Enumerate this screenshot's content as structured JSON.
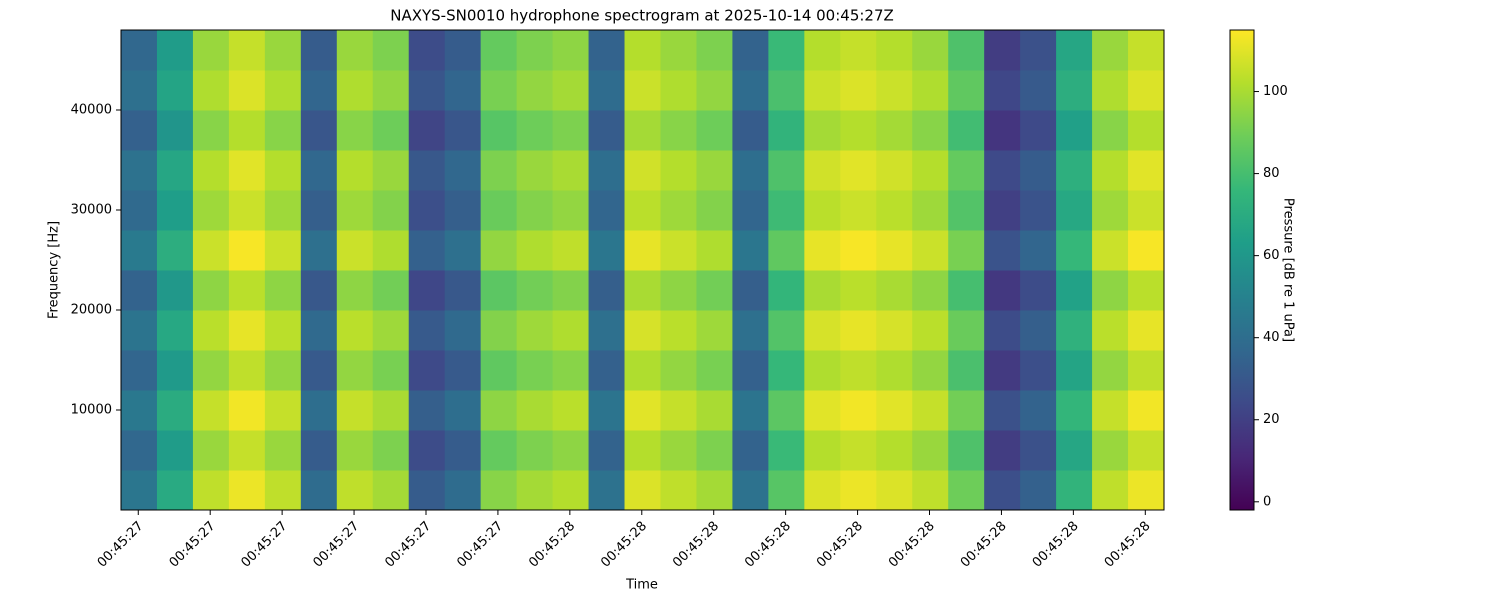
{
  "chart_data": {
    "type": "heatmap",
    "title": "NAXYS-SN0010 hydrophone spectrogram at 2025-10-14 00:45:27Z",
    "x_label": "Time",
    "y_label": "Frequency [Hz]",
    "colorbar_label": "Pressure [dB re 1 uPa]",
    "colormap": "viridis",
    "xlim": [
      2727.376,
      2728.826
    ],
    "ylim": [
      0,
      48000
    ],
    "zlim": [
      -2,
      115
    ],
    "xticks": [
      {
        "value": 2727.4,
        "label": "00:45:27"
      },
      {
        "value": 2727.5,
        "label": "00:45:27"
      },
      {
        "value": 2727.6,
        "label": "00:45:27"
      },
      {
        "value": 2727.7,
        "label": "00:45:27"
      },
      {
        "value": 2727.8,
        "label": "00:45:27"
      },
      {
        "value": 2727.9,
        "label": "00:45:27"
      },
      {
        "value": 2728.0,
        "label": "00:45:28"
      },
      {
        "value": 2728.1,
        "label": "00:45:28"
      },
      {
        "value": 2728.2,
        "label": "00:45:28"
      },
      {
        "value": 2728.3,
        "label": "00:45:28"
      },
      {
        "value": 2728.4,
        "label": "00:45:28"
      },
      {
        "value": 2728.5,
        "label": "00:45:28"
      },
      {
        "value": 2728.6,
        "label": "00:45:28"
      },
      {
        "value": 2728.7,
        "label": "00:45:28"
      },
      {
        "value": 2728.8,
        "label": "00:45:28"
      }
    ],
    "yticks": [
      10000,
      20000,
      30000,
      40000
    ],
    "zticks": [
      0,
      20,
      40,
      60,
      80,
      100
    ],
    "x_bins": [
      2727.376,
      2727.426,
      2727.476,
      2727.526,
      2727.576,
      2727.626,
      2727.676,
      2727.726,
      2727.776,
      2727.826,
      2727.876,
      2727.926,
      2727.976,
      2728.026,
      2728.076,
      2728.126,
      2728.176,
      2728.226,
      2728.276,
      2728.326,
      2728.376,
      2728.426,
      2728.476,
      2728.526,
      2728.576,
      2728.626,
      2728.676,
      2728.726,
      2728.776,
      2728.826
    ],
    "y_bins": [
      0,
      4000,
      8000,
      12000,
      16000,
      20000,
      24000,
      28000,
      32000,
      36000,
      40000,
      44000,
      48000
    ],
    "values": [
      [
        44,
        69,
        104,
        112,
        104,
        39,
        104,
        99,
        32,
        39,
        94,
        99,
        102,
        42,
        109,
        104,
        99,
        42,
        84,
        109,
        112,
        109,
        104,
        89,
        26,
        34,
        74,
        104,
        112
      ],
      [
        37,
        62,
        97,
        105,
        97,
        32,
        97,
        92,
        25,
        32,
        87,
        92,
        95,
        35,
        102,
        97,
        92,
        35,
        77,
        102,
        105,
        102,
        97,
        82,
        19,
        27,
        67,
        97,
        105
      ],
      [
        45,
        70,
        105,
        113,
        105,
        40,
        105,
        100,
        33,
        40,
        95,
        100,
        103,
        43,
        110,
        105,
        100,
        43,
        85,
        110,
        113,
        110,
        105,
        90,
        27,
        35,
        75,
        105,
        113
      ],
      [
        36,
        61,
        96,
        104,
        96,
        31,
        96,
        91,
        24,
        31,
        86,
        91,
        94,
        34,
        101,
        96,
        91,
        34,
        76,
        101,
        104,
        101,
        96,
        81,
        18,
        26,
        66,
        96,
        104
      ],
      [
        43,
        68,
        103,
        111,
        103,
        38,
        103,
        98,
        31,
        38,
        93,
        98,
        101,
        41,
        108,
        103,
        98,
        41,
        83,
        108,
        111,
        108,
        103,
        88,
        25,
        33,
        73,
        103,
        111
      ],
      [
        35,
        60,
        95,
        103,
        95,
        30,
        95,
        90,
        23,
        30,
        85,
        90,
        93,
        33,
        100,
        95,
        90,
        33,
        75,
        100,
        103,
        100,
        95,
        80,
        17,
        25,
        65,
        95,
        103
      ],
      [
        46,
        71,
        106,
        114,
        106,
        41,
        106,
        101,
        34,
        41,
        96,
        101,
        104,
        44,
        111,
        106,
        101,
        44,
        86,
        111,
        114,
        111,
        106,
        91,
        28,
        36,
        76,
        106,
        114
      ],
      [
        38,
        63,
        98,
        106,
        98,
        33,
        98,
        93,
        26,
        33,
        88,
        93,
        96,
        36,
        103,
        98,
        93,
        36,
        78,
        103,
        106,
        103,
        98,
        83,
        20,
        28,
        68,
        98,
        106
      ],
      [
        42,
        67,
        102,
        110,
        102,
        37,
        102,
        97,
        30,
        37,
        92,
        97,
        100,
        40,
        107,
        102,
        97,
        40,
        82,
        107,
        110,
        107,
        102,
        87,
        24,
        32,
        72,
        102,
        110
      ],
      [
        34,
        59,
        94,
        102,
        94,
        29,
        94,
        89,
        22,
        29,
        84,
        89,
        92,
        32,
        99,
        94,
        89,
        32,
        74,
        99,
        102,
        99,
        94,
        79,
        16,
        24,
        64,
        94,
        102
      ],
      [
        41,
        66,
        101,
        109,
        101,
        36,
        101,
        96,
        29,
        36,
        91,
        96,
        99,
        39,
        106,
        101,
        96,
        39,
        81,
        106,
        109,
        106,
        101,
        86,
        23,
        31,
        71,
        101,
        109
      ],
      [
        37,
        62,
        97,
        105,
        97,
        32,
        97,
        92,
        25,
        32,
        87,
        92,
        95,
        35,
        102,
        97,
        92,
        35,
        77,
        102,
        105,
        102,
        97,
        82,
        19,
        27,
        67,
        97,
        105
      ]
    ]
  }
}
